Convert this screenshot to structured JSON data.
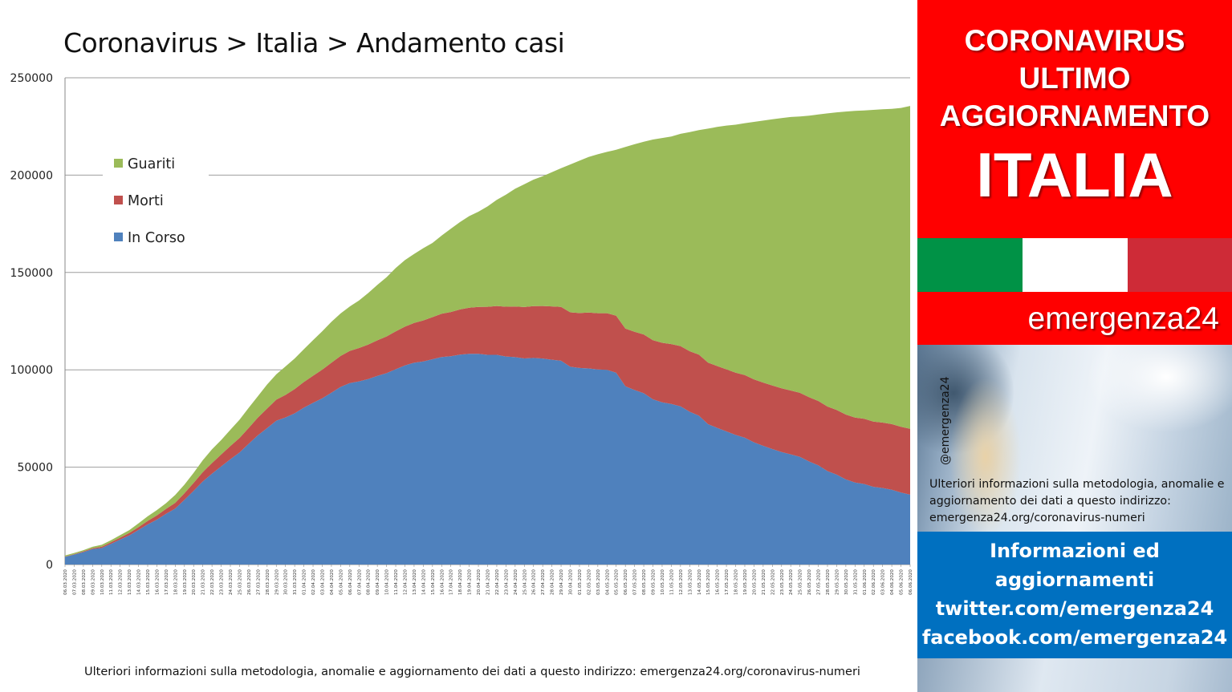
{
  "chart_data": {
    "type": "area",
    "stacked": true,
    "title": "Coronavirus > Italia > Andamento casi",
    "ylim": [
      0,
      250000
    ],
    "yticks": [
      0,
      50000,
      100000,
      150000,
      200000,
      250000
    ],
    "ytick_labels": [
      "0",
      "50000",
      "100000",
      "150000",
      "200000",
      "250000"
    ],
    "grid": true,
    "legend_position": "top-left",
    "x": [
      "06.03.2020",
      "07.03.2020",
      "08.03.2020",
      "09.03.2020",
      "10.03.2020",
      "11.03.2020",
      "12.03.2020",
      "13.03.2020",
      "14.03.2020",
      "15.03.2020",
      "16.03.2020",
      "17.03.2020",
      "18.03.2020",
      "19.03.2020",
      "20.03.2020",
      "21.03.2020",
      "22.03.2020",
      "23.03.2020",
      "24.03.2020",
      "25.03.2020",
      "26.03.2020",
      "27.03.2020",
      "28.03.2020",
      "29.03.2020",
      "30.03.2020",
      "31.03.2020",
      "01.04.2020",
      "02.04.2020",
      "03.04.2020",
      "04.04.2020",
      "05.04.2020",
      "06.04.2020",
      "07.04.2020",
      "08.04.2020",
      "09.04.2020",
      "10.04.2020",
      "11.04.2020",
      "12.04.2020",
      "13.04.2020",
      "14.04.2020",
      "15.04.2020",
      "16.04.2020",
      "17.04.2020",
      "18.04.2020",
      "19.04.2020",
      "20.04.2020",
      "21.04.2020",
      "22.04.2020",
      "23.04.2020",
      "24.04.2020",
      "25.04.2020",
      "26.04.2020",
      "27.04.2020",
      "28.04.2020",
      "29.04.2020",
      "30.04.2020",
      "01.05.2020",
      "02.05.2020",
      "03.05.2020",
      "04.05.2020",
      "05.05.2020",
      "06.05.2020",
      "07.05.2020",
      "08.05.2020",
      "09.05.2020",
      "10.05.2020",
      "11.05.2020",
      "12.05.2020",
      "13.05.2020",
      "14.05.2020",
      "15.05.2020",
      "16.05.2020",
      "17.05.2020",
      "18.05.2020",
      "19.05.2020",
      "20.05.2020",
      "21.05.2020",
      "22.05.2020",
      "23.05.2020",
      "24.05.2020",
      "25.05.2020",
      "26.05.2020",
      "27.05.2020",
      "28.05.2020",
      "29.05.2020",
      "30.05.2020",
      "31.05.2020",
      "01.06.2020",
      "02.06.2020",
      "03.06.2020",
      "04.06.2020",
      "05.06.2020",
      "06.06.2020"
    ],
    "series": [
      {
        "name": "In Corso",
        "color": "#4f81bd",
        "values": [
          3900,
          5100,
          6400,
          7900,
          8500,
          10600,
          12800,
          14955,
          17750,
          20600,
          23073,
          26062,
          28710,
          33190,
          37860,
          42681,
          46638,
          50418,
          54030,
          57521,
          62013,
          66414,
          70065,
          73880,
          75528,
          77635,
          80572,
          83049,
          85388,
          88274,
          91246,
          93187,
          94067,
          95262,
          96877,
          98273,
          100269,
          102253,
          103616,
          104291,
          105418,
          106607,
          106962,
          107771,
          108257,
          108237,
          107709,
          107699,
          106848,
          106527,
          105847,
          106103,
          105813,
          105205,
          104657,
          101551,
          100943,
          100704,
          100179,
          99980,
          98467,
          91528,
          89624,
          87961,
          84842,
          83324,
          82488,
          81266,
          78457,
          76440,
          72070,
          70187,
          68351,
          66553,
          65129,
          62752,
          60960,
          59322,
          57752,
          56594,
          55300,
          52942,
          50966,
          47986,
          46175,
          43691,
          42075,
          41367,
          39893,
          39297,
          38429,
          36976,
          35877
        ]
      },
      {
        "name": "Morti",
        "color": "#c0504d",
        "values": [
          197,
          233,
          366,
          463,
          631,
          827,
          1016,
          1266,
          1441,
          1809,
          2158,
          2503,
          2978,
          3405,
          4032,
          4825,
          5476,
          6077,
          6820,
          7503,
          8165,
          9134,
          10023,
          10779,
          11591,
          12428,
          13155,
          13915,
          14681,
          15362,
          15887,
          16523,
          17127,
          17669,
          18279,
          18849,
          19468,
          19899,
          20465,
          21067,
          21645,
          22170,
          22745,
          23227,
          23660,
          24114,
          24648,
          25085,
          25549,
          25969,
          26384,
          26644,
          26977,
          27359,
          27682,
          27967,
          28236,
          28710,
          28884,
          29079,
          29315,
          29684,
          29958,
          30201,
          30395,
          30560,
          30739,
          30911,
          31106,
          31368,
          31610,
          31763,
          31908,
          32007,
          32169,
          32330,
          32486,
          32616,
          32735,
          32785,
          32877,
          32955,
          33072,
          33142,
          33229,
          33340,
          33415,
          33475,
          33530,
          33601,
          33689,
          33774,
          33846
        ]
      },
      {
        "name": "Guariti",
        "color": "#9bbb59",
        "values": [
          523,
          589,
          622,
          724,
          1004,
          1045,
          1258,
          1439,
          1966,
          2335,
          2749,
          2941,
          4025,
          4440,
          5129,
          6072,
          7024,
          7432,
          8326,
          9362,
          10361,
          10950,
          12384,
          13030,
          14620,
          15729,
          16847,
          18278,
          19758,
          20996,
          21815,
          22837,
          24392,
          26491,
          28470,
          30455,
          32534,
          34211,
          35435,
          37130,
          38092,
          40164,
          42727,
          44927,
          47055,
          48877,
          51600,
          54543,
          57576,
          60498,
          63120,
          64928,
          66624,
          68941,
          71252,
          75945,
          78249,
          79914,
          81654,
          82879,
          85231,
          93245,
          96276,
          99023,
          103031,
          105186,
          106587,
          109039,
          112541,
          115288,
          120205,
          122810,
          125176,
          127326,
          129401,
          132282,
          134560,
          136720,
          138840,
          140479,
          141981,
          144658,
          147101,
          150604,
          152844,
          155633,
          157507,
          158355,
          160092,
          160938,
          161895,
          163781,
          165837
        ]
      }
    ]
  },
  "legend": {
    "items": [
      {
        "label": "Guariti",
        "color": "#9bbb59"
      },
      {
        "label": "Morti",
        "color": "#c0504d"
      },
      {
        "label": "In Corso",
        "color": "#4f81bd"
      }
    ]
  },
  "footer_note": "Ulteriori informazioni sulla metodologia, anomalie e aggiornamento dei dati a questo indirizzo: emergenza24.org/coronavirus-numeri",
  "side_panel": {
    "header_lines": [
      "CORONAVIRUS",
      "ULTIMO",
      "AGGIORNAMENTO"
    ],
    "country": "ITALIA",
    "brand": "emergenza24",
    "handle": "@emergenza24",
    "photo_note": "Ulteriori informazioni sulla metodologia, anomalie e aggiornamento dei dati a questo indirizzo: emergenza24.org/coronavirus-numeri",
    "info_lines": [
      "Informazioni ed",
      "aggiornamenti",
      "twitter.com/emergenza24",
      "facebook.com/emergenza24"
    ],
    "flag_colors": [
      "#009246",
      "#ffffff",
      "#ce2b37"
    ],
    "accent_red": "#ff0000",
    "accent_blue": "#0070c0"
  }
}
